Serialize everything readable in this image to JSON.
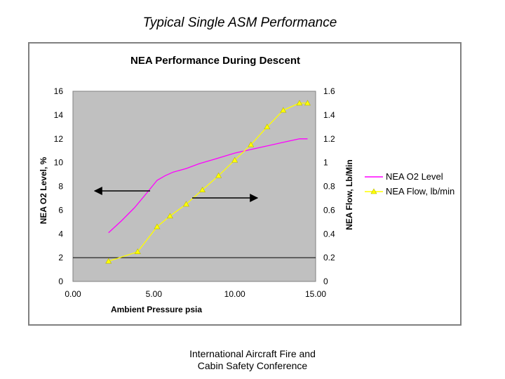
{
  "slide": {
    "title": "Typical Single ASM Performance",
    "footer_line1": "International Aircraft Fire and",
    "footer_line2": "Cabin Safety Conference"
  },
  "chart_data": {
    "type": "line",
    "title": "NEA Performance During Descent",
    "xlabel": "Ambient Pressure psia",
    "ylabel": "NEA O2 Level, %",
    "y2label": "NEA Flow, Lb/Min",
    "xlim": [
      0,
      15
    ],
    "ylim": [
      0,
      16
    ],
    "y2lim": [
      0,
      1.6
    ],
    "x_ticks": [
      "0.00",
      "5.00",
      "10.00",
      "15.00"
    ],
    "y_ticks": [
      "0",
      "2",
      "4",
      "6",
      "8",
      "10",
      "12",
      "14",
      "16"
    ],
    "y2_ticks": [
      "0",
      "0.2",
      "0.4",
      "0.6",
      "0.8",
      "1",
      "1.2",
      "1.4",
      "1.6"
    ],
    "legend_position": "right",
    "plot_background": "#c0c0c0",
    "series": [
      {
        "name": "NEA O2 Level",
        "axis": "left",
        "color": "#ff00ff",
        "marker": "none",
        "x": [
          2.2,
          3.0,
          3.8,
          4.6,
          5.2,
          5.7,
          6.2,
          7.0,
          7.8,
          8.8,
          10.0,
          11.0,
          12.0,
          13.0,
          14.0,
          14.5
        ],
        "values": [
          4.1,
          5.1,
          6.2,
          7.5,
          8.5,
          8.9,
          9.2,
          9.5,
          9.9,
          10.3,
          10.8,
          11.1,
          11.4,
          11.7,
          12.0,
          12.0
        ]
      },
      {
        "name": "NEA Flow, lb/min",
        "axis": "right",
        "color": "#ffff00",
        "marker": "triangle",
        "x": [
          2.2,
          4.0,
          5.2,
          6.0,
          7.0,
          8.0,
          9.0,
          10.0,
          11.0,
          12.0,
          13.0,
          14.0,
          14.5
        ],
        "values": [
          0.17,
          0.25,
          0.46,
          0.55,
          0.65,
          0.77,
          0.89,
          1.02,
          1.15,
          1.3,
          1.44,
          1.5,
          1.5
        ]
      }
    ],
    "arrows": [
      {
        "points_to": "left axis"
      },
      {
        "points_to": "right axis"
      }
    ],
    "reference_line_y": 2
  }
}
